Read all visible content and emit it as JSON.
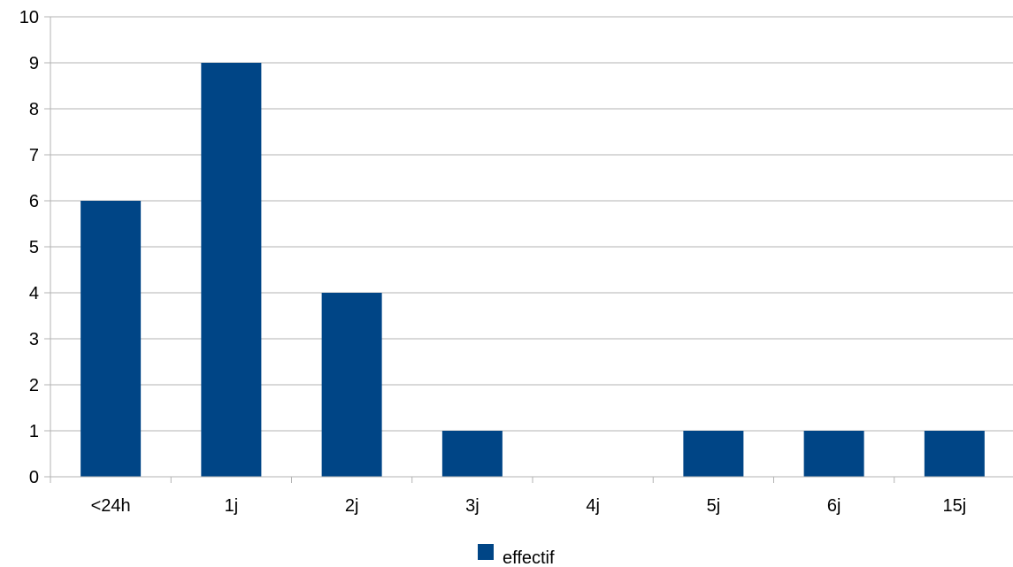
{
  "chart_data": {
    "type": "bar",
    "categories": [
      "<24h",
      "1j",
      "2j",
      "3j",
      "4j",
      "5j",
      "6j",
      "15j"
    ],
    "series": [
      {
        "name": "effectif",
        "values": [
          6,
          9,
          4,
          1,
          0,
          1,
          1,
          1
        ],
        "color": "#004586"
      }
    ],
    "title": "",
    "xlabel": "",
    "ylabel": "",
    "ylim": [
      0,
      10
    ],
    "yticks": [
      0,
      1,
      2,
      3,
      4,
      5,
      6,
      7,
      8,
      9,
      10
    ],
    "grid": true,
    "legend": "bottom-center"
  }
}
